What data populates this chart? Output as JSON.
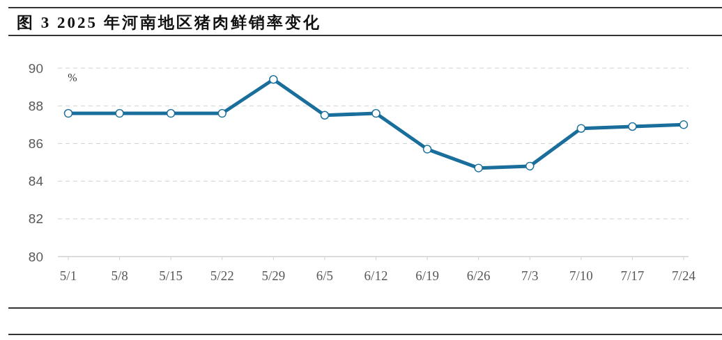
{
  "chart_data": {
    "type": "line",
    "title": "图 3 2025 年河南地区猪肉鲜销率变化",
    "ylabel": "%",
    "categories": [
      "5/1",
      "5/8",
      "5/15",
      "5/22",
      "5/29",
      "6/5",
      "6/12",
      "6/19",
      "6/26",
      "7/3",
      "7/10",
      "7/17",
      "7/24"
    ],
    "series": [
      {
        "color": "#1a6e9b",
        "values": [
          87.6,
          87.6,
          87.6,
          87.6,
          89.4,
          87.5,
          87.6,
          85.7,
          84.7,
          84.8,
          86.8,
          86.9,
          87.0
        ]
      }
    ],
    "ylim": [
      80,
      90
    ],
    "yticks": [
      80,
      82,
      84,
      86,
      88,
      90
    ],
    "grid": "y",
    "marker": "circle",
    "line_style": "solid"
  }
}
